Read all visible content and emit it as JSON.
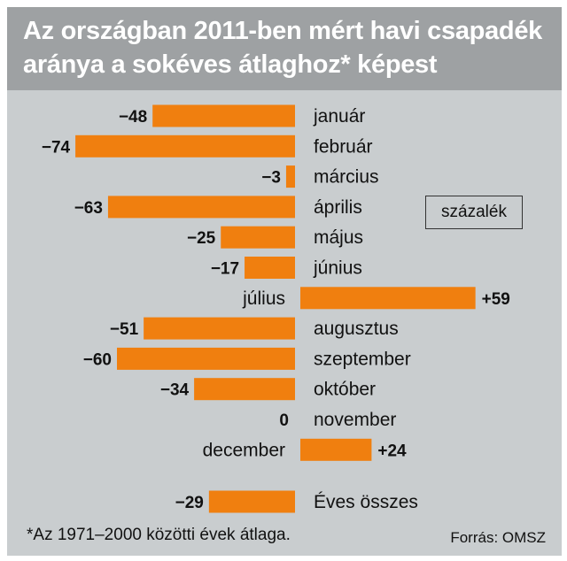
{
  "chart_data": {
    "type": "bar",
    "orientation": "horizontal",
    "title": [
      "Az országban 2011-ben mért havi csapadék",
      "aránya a sokéves átlaghoz* képest"
    ],
    "unit": "százalék",
    "categories": [
      "január",
      "február",
      "március",
      "április",
      "május",
      "június",
      "július",
      "augusztus",
      "szeptember",
      "október",
      "november",
      "december"
    ],
    "values": [
      -48,
      -74,
      -3,
      -63,
      -25,
      -17,
      59,
      -51,
      -60,
      -34,
      0,
      24
    ],
    "value_labels": [
      "−48",
      "−74",
      "−3",
      "−63",
      "−25",
      "−17",
      "+59",
      "−51",
      "−60",
      "−34",
      "0",
      "+24"
    ],
    "total": {
      "label": "Éves összes",
      "value": -29,
      "value_label": "−29"
    },
    "colors": {
      "bar": "#f07f0f",
      "background": "#c9cdcf",
      "header": "#9ea1a3"
    }
  },
  "footnote": "*Az 1971–2000 közötti évek átlaga.",
  "source": "Forrás: OMSZ"
}
